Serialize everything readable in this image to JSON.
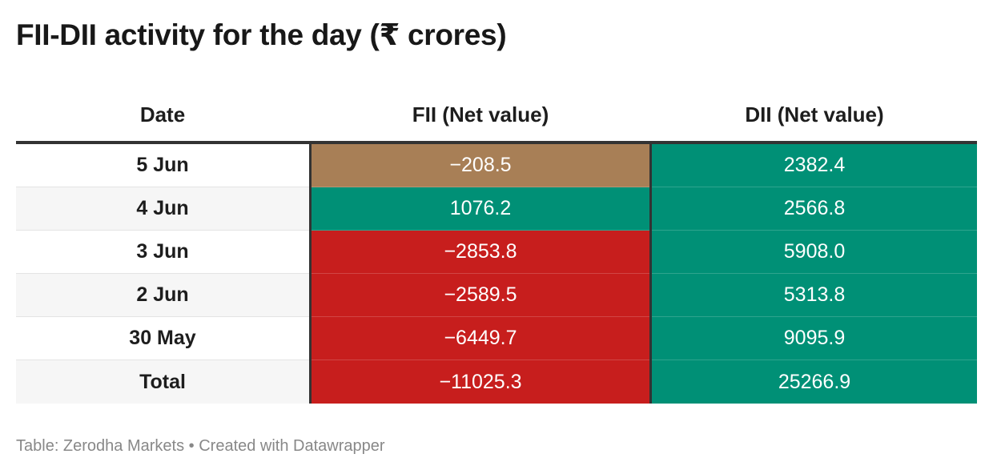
{
  "title": "FII-DII activity for the day (₹ crores)",
  "footer": "Table: Zerodha Markets • Created with Datawrapper",
  "colors": {
    "positive": "#009076",
    "negative_strong": "#c71e1d",
    "negative_mild": "#a87f56"
  },
  "chart_data": {
    "type": "table",
    "title": "FII-DII activity for the day (₹ crores)",
    "columns": [
      "Date",
      "FII (Net value)",
      "DII (Net value)"
    ],
    "rows": [
      {
        "date": "5 Jun",
        "fii": "−208.5",
        "dii": "2382.4",
        "fii_value": -208.5,
        "dii_value": 2382.4
      },
      {
        "date": "4 Jun",
        "fii": "1076.2",
        "dii": "2566.8",
        "fii_value": 1076.2,
        "dii_value": 2566.8
      },
      {
        "date": "3 Jun",
        "fii": "−2853.8",
        "dii": "5908.0",
        "fii_value": -2853.8,
        "dii_value": 5908.0
      },
      {
        "date": "2 Jun",
        "fii": "−2589.5",
        "dii": "5313.8",
        "fii_value": -2589.5,
        "dii_value": 5313.8
      },
      {
        "date": "30 May",
        "fii": "−6449.7",
        "dii": "9095.9",
        "fii_value": -6449.7,
        "dii_value": 9095.9
      },
      {
        "date": "Total",
        "fii": "−11025.3",
        "dii": "25266.9",
        "fii_value": -11025.3,
        "dii_value": 25266.9
      }
    ],
    "source": "Table: Zerodha Markets • Created with Datawrapper"
  }
}
